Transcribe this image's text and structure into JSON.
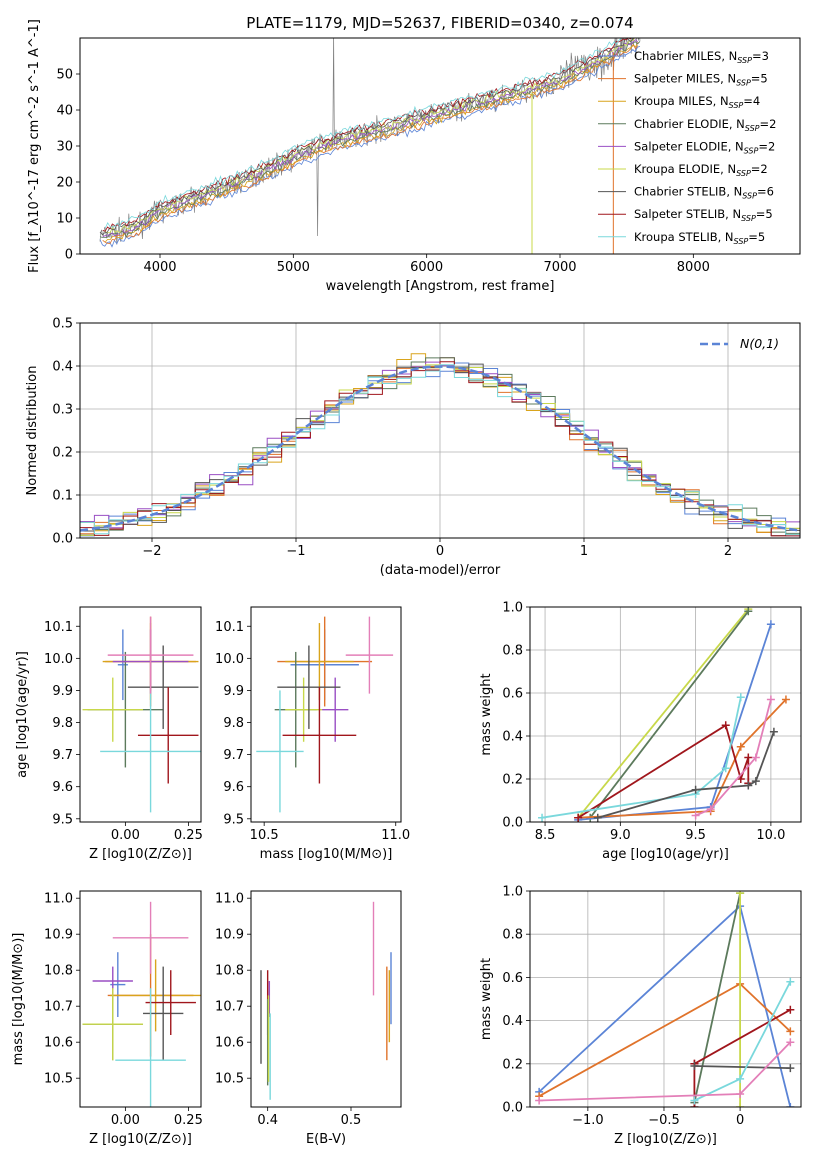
{
  "title": "PLATE=1179, MJD=52637, FIBERID=0340, z=0.074",
  "colors": {
    "chabrier_miles": "#5b84d6",
    "salpeter_miles": "#e0732b",
    "kroupa_miles": "#d9a41c",
    "chabrier_elodie": "#5c7a5c",
    "salpeter_elodie": "#9a4fc4",
    "kroupa_elodie": "#c8d84a",
    "chabrier_stelib": "#555555",
    "salpeter_stelib": "#a0161c",
    "kroupa_stelib": "#7ad8dc",
    "data": "#808080",
    "pink": "#e37fb8"
  },
  "chart_data": [
    {
      "id": "spectrum",
      "type": "line",
      "xlabel": "wavelength [Angstrom, rest frame]",
      "ylabel": "Flux [f_λ10^-17 erg cm^-2 s^-1 A^-1]",
      "xlim": [
        3400,
        8800
      ],
      "ylim": [
        0,
        60
      ],
      "xticks": [
        4000,
        5000,
        6000,
        7000,
        8000
      ],
      "yticks": [
        0,
        10,
        20,
        30,
        40,
        50
      ],
      "legend_position": "right",
      "legend": [
        {
          "model": "Chabrier MILES",
          "n": "3",
          "color_key": "chabrier_miles"
        },
        {
          "model": "Salpeter MILES",
          "n": "5",
          "color_key": "salpeter_miles"
        },
        {
          "model": "Kroupa MILES",
          "n": "4",
          "color_key": "kroupa_miles"
        },
        {
          "model": "Chabrier ELODIE",
          "n": "2",
          "color_key": "chabrier_elodie"
        },
        {
          "model": "Salpeter ELODIE",
          "n": "2",
          "color_key": "salpeter_elodie"
        },
        {
          "model": "Kroupa ELODIE",
          "n": "2",
          "color_key": "kroupa_elodie"
        },
        {
          "model": "Chabrier STELIB",
          "n": "6",
          "color_key": "chabrier_stelib"
        },
        {
          "model": "Salpeter STELIB",
          "n": "5",
          "color_key": "salpeter_stelib"
        },
        {
          "model": "Kroupa STELIB",
          "n": "5",
          "color_key": "kroupa_stelib"
        }
      ],
      "continuum": {
        "x": [
          3550,
          3800,
          4000,
          4300,
          4600,
          4900,
          5200,
          5500,
          5800,
          6100,
          6400,
          6700,
          7000,
          7200,
          7400,
          7600
        ],
        "y": [
          5,
          7,
          12,
          16,
          20,
          25,
          30,
          33,
          36,
          39,
          42,
          45,
          48,
          52,
          56,
          60
        ]
      }
    },
    {
      "id": "residuals",
      "type": "histogram",
      "xlabel": "(data-model)/error",
      "ylabel": "Normed distribution",
      "xlim": [
        -2.5,
        2.5
      ],
      "ylim": [
        0,
        0.5
      ],
      "xticks": [
        -2,
        -1,
        0,
        1,
        2
      ],
      "yticks": [
        0.0,
        0.1,
        0.2,
        0.3,
        0.4,
        0.5
      ],
      "grid": true,
      "legend_position": "top-right",
      "legend_label": "N(0,1)",
      "bin_width": 0.1
    },
    {
      "id": "age_vs_z",
      "type": "scatter",
      "xlabel": "Z [log10(Z/Z⊙)]",
      "ylabel": "age  [log10(age/yr)]",
      "xlim": [
        -0.18,
        0.3
      ],
      "ylim": [
        9.49,
        10.16
      ],
      "xticks": [
        0.0,
        0.25
      ],
      "yticks": [
        9.5,
        9.6,
        9.7,
        9.8,
        9.9,
        10.0,
        10.1
      ],
      "points": [
        {
          "color_key": "chabrier_miles",
          "x": -0.01,
          "y": 9.98,
          "xerr": 0.02,
          "yerr": 0.11
        },
        {
          "color_key": "salpeter_miles",
          "x": 0.1,
          "y": 9.99,
          "xerr": 0.18,
          "yerr": 0.14
        },
        {
          "color_key": "kroupa_miles",
          "x": 0.1,
          "y": 9.99,
          "xerr": 0.19,
          "yerr": 0.12
        },
        {
          "color_key": "chabrier_elodie",
          "x": 0.0,
          "y": 9.84,
          "xerr": 0.15,
          "yerr": 0.18
        },
        {
          "color_key": "salpeter_elodie",
          "x": 0.1,
          "y": 9.99,
          "xerr": 0.15,
          "yerr": 0.1
        },
        {
          "color_key": "kroupa_elodie",
          "x": -0.05,
          "y": 9.84,
          "xerr": 0.12,
          "yerr": 0.1
        },
        {
          "color_key": "chabrier_stelib",
          "x": 0.15,
          "y": 9.91,
          "xerr": 0.14,
          "yerr": 0.13
        },
        {
          "color_key": "salpeter_stelib",
          "x": 0.17,
          "y": 9.76,
          "xerr": 0.12,
          "yerr": 0.15
        },
        {
          "color_key": "kroupa_stelib",
          "x": 0.1,
          "y": 9.71,
          "xerr": 0.2,
          "yerr": 0.19
        },
        {
          "color_key": "pink",
          "x": 0.1,
          "y": 10.01,
          "xerr": 0.17,
          "yerr": 0.12
        }
      ]
    },
    {
      "id": "age_vs_mass",
      "type": "scatter",
      "xlabel": "mass [log10(M/M⊙)]",
      "ylabel": "",
      "xlim": [
        10.45,
        11.02
      ],
      "ylim": [
        9.49,
        10.16
      ],
      "xticks": [
        10.5,
        11.0
      ],
      "yticks": [
        9.5,
        9.6,
        9.7,
        9.8,
        9.9,
        10.0,
        10.1
      ],
      "points": [
        {
          "color_key": "chabrier_miles",
          "x": 10.73,
          "y": 9.98,
          "xerr": 0.13,
          "yerr": 0.11
        },
        {
          "color_key": "salpeter_miles",
          "x": 10.73,
          "y": 9.99,
          "xerr": 0.18,
          "yerr": 0.14
        },
        {
          "color_key": "kroupa_miles",
          "x": 10.71,
          "y": 9.99,
          "xerr": 0.13,
          "yerr": 0.12
        },
        {
          "color_key": "chabrier_elodie",
          "x": 10.62,
          "y": 9.84,
          "xerr": 0.08,
          "yerr": 0.18
        },
        {
          "color_key": "salpeter_elodie",
          "x": 10.77,
          "y": 9.84,
          "xerr": 0.05,
          "yerr": 0.1
        },
        {
          "color_key": "kroupa_elodie",
          "x": 10.65,
          "y": 9.84,
          "xerr": 0.07,
          "yerr": 0.1
        },
        {
          "color_key": "chabrier_stelib",
          "x": 10.67,
          "y": 9.91,
          "xerr": 0.12,
          "yerr": 0.13
        },
        {
          "color_key": "salpeter_stelib",
          "x": 10.71,
          "y": 9.76,
          "xerr": 0.14,
          "yerr": 0.15
        },
        {
          "color_key": "kroupa_stelib",
          "x": 10.56,
          "y": 9.71,
          "xerr": 0.09,
          "yerr": 0.19
        },
        {
          "color_key": "pink",
          "x": 10.9,
          "y": 10.01,
          "xerr": 0.09,
          "yerr": 0.12
        }
      ]
    },
    {
      "id": "mass_vs_z",
      "type": "scatter",
      "xlabel": "Z [log10(Z/Z⊙)]",
      "ylabel": "mass [log10(M/M⊙)]",
      "xlim": [
        -0.18,
        0.3
      ],
      "ylim": [
        10.42,
        11.02
      ],
      "xticks": [
        0.0,
        0.25
      ],
      "yticks": [
        10.5,
        10.6,
        10.7,
        10.8,
        10.9,
        11.0
      ],
      "points": [
        {
          "color_key": "chabrier_miles",
          "x": -0.03,
          "y": 10.76,
          "xerr": 0.03,
          "yerr": 0.09
        },
        {
          "color_key": "salpeter_miles",
          "x": 0.1,
          "y": 10.73,
          "xerr": 0.17,
          "yerr": 0.17
        },
        {
          "color_key": "kroupa_miles",
          "x": 0.12,
          "y": 10.73,
          "xerr": 0.18,
          "yerr": 0.1
        },
        {
          "color_key": "chabrier_elodie",
          "x": -0.05,
          "y": 10.65,
          "xerr": 0.12,
          "yerr": 0.1
        },
        {
          "color_key": "salpeter_elodie",
          "x": -0.05,
          "y": 10.77,
          "xerr": 0.08,
          "yerr": 0.04
        },
        {
          "color_key": "kroupa_elodie",
          "x": -0.05,
          "y": 10.65,
          "xerr": 0.12,
          "yerr": 0.1
        },
        {
          "color_key": "chabrier_stelib",
          "x": 0.15,
          "y": 10.68,
          "xerr": 0.08,
          "yerr": 0.13
        },
        {
          "color_key": "salpeter_stelib",
          "x": 0.18,
          "y": 10.71,
          "xerr": 0.1,
          "yerr": 0.09
        },
        {
          "color_key": "kroupa_stelib",
          "x": 0.1,
          "y": 10.55,
          "xerr": 0.14,
          "yerr": 0.2
        },
        {
          "color_key": "pink",
          "x": 0.1,
          "y": 10.89,
          "xerr": 0.15,
          "yerr": 0.1
        }
      ]
    },
    {
      "id": "mass_vs_ebv",
      "type": "scatter",
      "xlabel": "E(B-V)",
      "ylabel": "",
      "xlim": [
        0.38,
        0.56
      ],
      "ylim": [
        10.42,
        11.02
      ],
      "xticks": [
        0.4,
        0.5
      ],
      "yticks": [
        10.5,
        10.6,
        10.7,
        10.8,
        10.9,
        11.0
      ],
      "points": [
        {
          "color_key": "chabrier_stelib",
          "x": 0.392,
          "y": 10.67,
          "xerr": 0,
          "yerr": 0.13
        },
        {
          "color_key": "salpeter_stelib",
          "x": 0.4,
          "y": 10.71,
          "xerr": 0,
          "yerr": 0.09
        },
        {
          "color_key": "salpeter_elodie",
          "x": 0.402,
          "y": 10.72,
          "xerr": 0,
          "yerr": 0.05
        },
        {
          "color_key": "chabrier_elodie",
          "x": 0.4,
          "y": 10.6,
          "xerr": 0,
          "yerr": 0.12
        },
        {
          "color_key": "kroupa_elodie",
          "x": 0.401,
          "y": 10.61,
          "xerr": 0,
          "yerr": 0.12
        },
        {
          "color_key": "kroupa_stelib",
          "x": 0.403,
          "y": 10.56,
          "xerr": 0,
          "yerr": 0.12
        },
        {
          "color_key": "pink",
          "x": 0.527,
          "y": 10.86,
          "xerr": 0,
          "yerr": 0.13
        },
        {
          "color_key": "salpeter_miles",
          "x": 0.543,
          "y": 10.68,
          "xerr": 0,
          "yerr": 0.13
        },
        {
          "color_key": "kroupa_miles",
          "x": 0.546,
          "y": 10.7,
          "xerr": 0,
          "yerr": 0.1
        },
        {
          "color_key": "chabrier_miles",
          "x": 0.548,
          "y": 10.75,
          "xerr": 0,
          "yerr": 0.1
        }
      ]
    },
    {
      "id": "weight_vs_age",
      "type": "line",
      "xlabel": "age  [log10(age/yr)]",
      "ylabel": "mass weight",
      "xlim": [
        8.4,
        10.2
      ],
      "ylim": [
        0,
        1.0
      ],
      "xticks": [
        8.5,
        9.0,
        9.5,
        10.0
      ],
      "yticks": [
        0.0,
        0.2,
        0.4,
        0.6,
        0.8,
        1.0
      ],
      "grid": true,
      "series": [
        {
          "color_key": "kroupa_elodie",
          "x": [
            8.72,
            9.85
          ],
          "y": [
            0.02,
            0.99
          ]
        },
        {
          "color_key": "chabrier_elodie",
          "x": [
            8.8,
            9.85
          ],
          "y": [
            0.02,
            0.98
          ]
        },
        {
          "color_key": "chabrier_miles",
          "x": [
            8.72,
            9.6,
            10.0
          ],
          "y": [
            0.01,
            0.07,
            0.92
          ]
        },
        {
          "color_key": "salpeter_miles",
          "x": [
            8.72,
            9.6,
            9.8,
            10.1
          ],
          "y": [
            0.02,
            0.05,
            0.35,
            0.57
          ]
        },
        {
          "color_key": "salpeter_stelib",
          "x": [
            8.72,
            9.7,
            9.8,
            9.85,
            9.85
          ],
          "y": [
            0.02,
            0.45,
            0.2,
            0.3,
            0.18
          ]
        },
        {
          "color_key": "kroupa_stelib",
          "x": [
            8.48,
            9.5,
            9.7,
            9.8
          ],
          "y": [
            0.02,
            0.13,
            0.25,
            0.58
          ]
        },
        {
          "color_key": "chabrier_stelib",
          "x": [
            8.85,
            9.5,
            9.85,
            9.9,
            10.02
          ],
          "y": [
            0.02,
            0.15,
            0.17,
            0.19,
            0.42
          ]
        },
        {
          "color_key": "pink",
          "x": [
            9.5,
            9.6,
            9.9,
            10.0
          ],
          "y": [
            0.03,
            0.06,
            0.3,
            0.57
          ]
        }
      ]
    },
    {
      "id": "weight_vs_z",
      "type": "line",
      "xlabel": "Z [log10(Z/Z⊙)]",
      "ylabel": "mass weight",
      "xlim": [
        -1.38,
        0.4
      ],
      "ylim": [
        0,
        1.0
      ],
      "xticks": [
        -1.0,
        -0.5,
        0.0
      ],
      "yticks": [
        0.0,
        0.2,
        0.4,
        0.6,
        0.8,
        1.0
      ],
      "grid": true,
      "series": [
        {
          "color_key": "chabrier_miles",
          "x": [
            -1.32,
            0.0,
            0.33
          ],
          "y": [
            0.07,
            0.93,
            0.0
          ]
        },
        {
          "color_key": "salpeter_miles",
          "x": [
            -1.32,
            0.0,
            0.33
          ],
          "y": [
            0.05,
            0.57,
            0.35
          ]
        },
        {
          "color_key": "chabrier_elodie",
          "x": [
            -0.3,
            0.0
          ],
          "y": [
            0.02,
            0.99
          ]
        },
        {
          "color_key": "kroupa_elodie",
          "x": [
            0.0,
            0.0
          ],
          "y": [
            0.0,
            0.99
          ]
        },
        {
          "color_key": "salpeter_stelib",
          "x": [
            -0.3,
            0.33
          ],
          "y": [
            0.2,
            0.45
          ]
        },
        {
          "color_key": "salpeter_stelib",
          "x": [
            -0.3,
            -0.3
          ],
          "y": [
            0.2,
            0.0
          ]
        },
        {
          "color_key": "chabrier_stelib",
          "x": [
            -0.3,
            0.33
          ],
          "y": [
            0.19,
            0.18
          ]
        },
        {
          "color_key": "kroupa_stelib",
          "x": [
            -0.3,
            0.0,
            0.33
          ],
          "y": [
            0.03,
            0.13,
            0.58
          ]
        },
        {
          "color_key": "pink",
          "x": [
            -1.32,
            0.0,
            0.33
          ],
          "y": [
            0.03,
            0.06,
            0.3
          ]
        }
      ]
    }
  ]
}
